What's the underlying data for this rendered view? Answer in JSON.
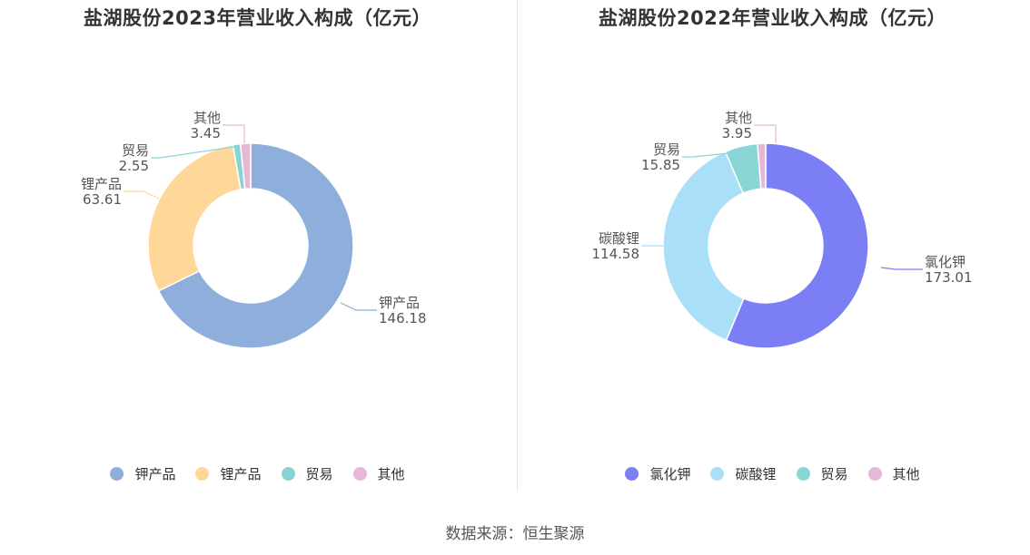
{
  "chart_data": [
    {
      "type": "pie",
      "variant": "donut",
      "title": "盐湖股份2023年营业收入构成（亿元）",
      "categories": [
        "钾产品",
        "锂产品",
        "贸易",
        "其他"
      ],
      "values": [
        146.18,
        63.61,
        2.55,
        3.45
      ],
      "value_labels": [
        "146.18",
        "63.61",
        "2.55",
        "3.45"
      ],
      "colors": [
        "#8eaedc",
        "#ffd899",
        "#88d3d6",
        "#e6b8d8"
      ],
      "legend": "bottom"
    },
    {
      "type": "pie",
      "variant": "donut",
      "title": "盐湖股份2022年营业收入构成（亿元）",
      "categories": [
        "氯化钾",
        "碳酸锂",
        "贸易",
        "其他"
      ],
      "values": [
        173.01,
        114.58,
        15.85,
        3.95
      ],
      "value_labels": [
        "173.01",
        "114.58",
        "15.85",
        "3.95"
      ],
      "colors": [
        "#7b7ef5",
        "#aadff8",
        "#88d6d6",
        "#e6b8d8"
      ],
      "legend": "bottom"
    }
  ],
  "footer": {
    "source": "数据来源：恒生聚源"
  }
}
